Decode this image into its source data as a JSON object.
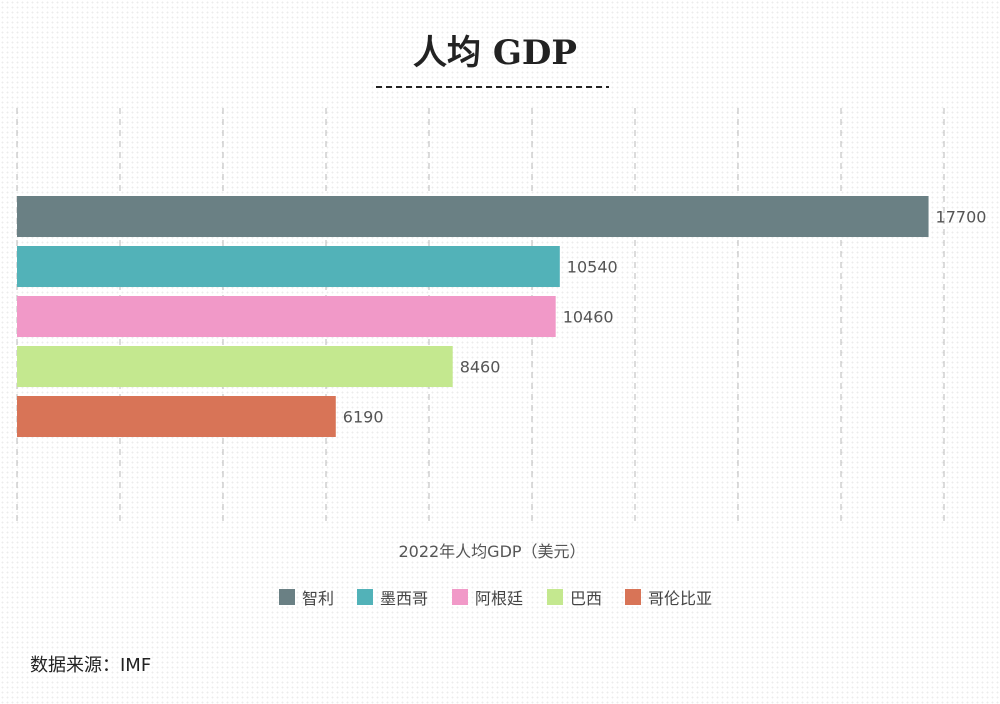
{
  "chart_data": {
    "type": "bar",
    "orientation": "horizontal",
    "title": "人均 GDP",
    "categories": [
      "智利",
      "墨西哥",
      "阿根廷",
      "巴西",
      "哥伦比亚"
    ],
    "values": [
      17700,
      10540,
      10460,
      8460,
      6190
    ],
    "colors": [
      "#6a8084",
      "#52b2b8",
      "#f199c8",
      "#c4e88f",
      "#d87457"
    ],
    "xlabel": "2022年人均GDP（美元）",
    "ylabel": "",
    "xlim": [
      0,
      18000
    ],
    "grid": true,
    "legend": {
      "placement": "bottom",
      "entries": [
        "智利",
        "墨西哥",
        "阿根廷",
        "巴西",
        "哥伦比亚"
      ]
    }
  },
  "source": "数据来源：IMF",
  "colors": {
    "title_underline": "#222222",
    "grid": "#b8b8b8"
  }
}
